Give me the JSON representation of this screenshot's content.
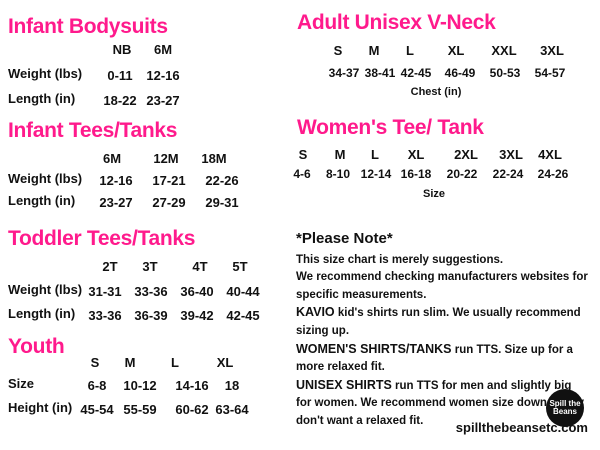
{
  "left_sections": [
    {
      "title": "Infant Bodysuits",
      "columns": [
        "NB",
        "6M"
      ],
      "rows": [
        {
          "label": "Weight (lbs)",
          "values": [
            "0-11",
            "12-16"
          ]
        },
        {
          "label": "Length (in)",
          "values": [
            "18-22",
            "23-27"
          ]
        }
      ]
    },
    {
      "title": "Infant Tees/Tanks",
      "columns": [
        "6M",
        "12M",
        "18M"
      ],
      "rows": [
        {
          "label": "Weight (lbs)",
          "values": [
            "12-16",
            "17-21",
            "22-26"
          ]
        },
        {
          "label": "Length (in)",
          "values": [
            "23-27",
            "27-29",
            "29-31"
          ]
        }
      ]
    },
    {
      "title": "Toddler  Tees/Tanks",
      "columns": [
        "2T",
        "3T",
        "4T",
        "5T"
      ],
      "rows": [
        {
          "label": "Weight (lbs)",
          "values": [
            "31-31",
            "33-36",
            "36-40",
            "40-44"
          ]
        },
        {
          "label": "Length (in)",
          "values": [
            "33-36",
            "36-39",
            "39-42",
            "42-45"
          ]
        }
      ]
    },
    {
      "title": "Youth",
      "columns": [
        "S",
        "M",
        "L",
        "XL"
      ],
      "rows": [
        {
          "label": "Size",
          "values": [
            "6-8",
            "10-12",
            "14-16",
            "18"
          ]
        },
        {
          "label": "Height (in)",
          "values": [
            "45-54",
            "55-59",
            "60-62",
            "63-64"
          ]
        }
      ]
    }
  ],
  "right_sections": [
    {
      "title": "Adult Unisex V-Neck",
      "columns": [
        "S",
        "M",
        "L",
        "XL",
        "XXL",
        "3XL"
      ],
      "values": [
        "34-37",
        "38-41",
        "42-45",
        "46-49",
        "50-53",
        "54-57"
      ],
      "caption": "Chest (in)"
    },
    {
      "title": "Women's Tee/ Tank",
      "columns": [
        "S",
        "M",
        "L",
        "XL",
        "2XL",
        "3XL",
        "4XL"
      ],
      "values": [
        "4-6",
        "8-10",
        "12-14",
        "16-18",
        "20-22",
        "22-24",
        "24-26"
      ],
      "caption": "Size"
    }
  ],
  "note": {
    "title": "*Please Note*",
    "paragraphs": [
      {
        "text": "This size chart is merely suggestions."
      },
      {
        "text": "We recommend checking manufacturers websites for specific measurements."
      },
      {
        "lead": "KAVIO",
        "text": " kid's shirts run slim. We usually recommend sizing up."
      },
      {
        "lead": "WOMEN'S SHIRTS/TANKS",
        "text": " run TTS. Size up for a more relaxed fit."
      },
      {
        "lead": "UNISEX SHIRTS",
        "text": " run TTS for men and slightly big for women. We recommend women size down if they don't want a relaxed fit."
      }
    ]
  },
  "logo": "Spill the Beans",
  "footer": "spillthebeansetc.com"
}
